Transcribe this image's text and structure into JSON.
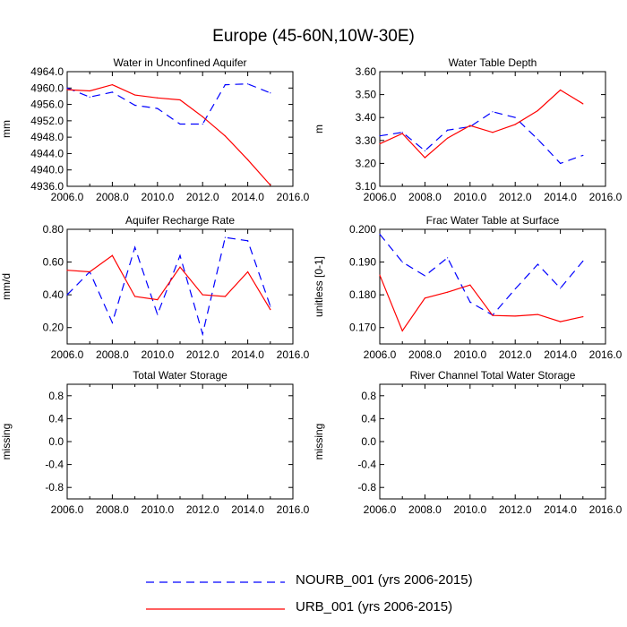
{
  "title": "Europe (45-60N,10W-30E)",
  "colors": {
    "nourb": "#0000ff",
    "urb": "#ff0000",
    "axis": "#000000"
  },
  "legend": [
    {
      "label": "NOURB_001 (yrs 2006-2015)",
      "style": "dashed",
      "color": "#0000ff"
    },
    {
      "label": "URB_001 (yrs 2006-2015)",
      "style": "solid",
      "color": "#ff0000"
    }
  ],
  "chart_data": [
    {
      "type": "line",
      "title": "Water in Unconfined Aquifer",
      "ylabel": "mm",
      "xlim": [
        2006,
        2016
      ],
      "ylim": [
        4936,
        4964
      ],
      "xticks": [
        "2006.0",
        "2008.0",
        "2010.0",
        "2012.0",
        "2014.0",
        "2016.0"
      ],
      "yticks": [
        "4936.0",
        "4940.0",
        "4944.0",
        "4948.0",
        "4952.0",
        "4956.0",
        "4960.0",
        "4964.0"
      ],
      "x": [
        2006,
        2007,
        2008,
        2009,
        2010,
        2011,
        2012,
        2013,
        2014,
        2015
      ],
      "series": [
        {
          "name": "NOURB_001 (yrs 2006-2015)",
          "values": [
            4960.0,
            4957.8,
            4959.0,
            4955.8,
            4955.0,
            4951.2,
            4951.2,
            4960.8,
            4961.0,
            4958.8
          ]
        },
        {
          "name": "URB_001 (yrs 2006-2015)",
          "values": [
            4959.6,
            4959.3,
            4960.8,
            4958.3,
            4957.6,
            4957.1,
            4953.0,
            4948.3,
            4942.5,
            4936.3
          ]
        }
      ]
    },
    {
      "type": "line",
      "title": "Water Table Depth",
      "ylabel": "m",
      "xlim": [
        2006,
        2016
      ],
      "ylim": [
        3.1,
        3.6
      ],
      "xticks": [
        "2006.0",
        "2008.0",
        "2010.0",
        "2012.0",
        "2014.0",
        "2016.0"
      ],
      "yticks": [
        "3.10",
        "3.20",
        "3.30",
        "3.40",
        "3.50",
        "3.60"
      ],
      "x": [
        2006,
        2007,
        2008,
        2009,
        2010,
        2011,
        2012,
        2013,
        2014,
        2015
      ],
      "series": [
        {
          "name": "NOURB_001 (yrs 2006-2015)",
          "values": [
            3.32,
            3.335,
            3.255,
            3.345,
            3.36,
            3.425,
            3.4,
            3.305,
            3.2,
            3.235
          ]
        },
        {
          "name": "URB_001 (yrs 2006-2015)",
          "values": [
            3.285,
            3.33,
            3.225,
            3.31,
            3.365,
            3.335,
            3.37,
            3.43,
            3.52,
            3.46
          ]
        }
      ]
    },
    {
      "type": "line",
      "title": "Aquifer Recharge Rate",
      "ylabel": "mm/d",
      "xlim": [
        2006,
        2016
      ],
      "ylim": [
        0.1,
        0.8
      ],
      "xticks": [
        "2006.0",
        "2008.0",
        "2010.0",
        "2012.0",
        "2014.0",
        "2016.0"
      ],
      "yticks": [
        "0.20",
        "0.40",
        "0.60",
        "0.80"
      ],
      "x": [
        2006,
        2007,
        2008,
        2009,
        2010,
        2011,
        2012,
        2013,
        2014,
        2015
      ],
      "series": [
        {
          "name": "NOURB_001 (yrs 2006-2015)",
          "values": [
            0.4,
            0.54,
            0.23,
            0.69,
            0.28,
            0.64,
            0.16,
            0.75,
            0.73,
            0.33
          ]
        },
        {
          "name": "URB_001 (yrs 2006-2015)",
          "values": [
            0.55,
            0.54,
            0.64,
            0.39,
            0.37,
            0.57,
            0.4,
            0.39,
            0.54,
            0.31
          ]
        }
      ]
    },
    {
      "type": "line",
      "title": "Frac Water Table at Surface",
      "ylabel": "unitless [0-1]",
      "xlim": [
        2006,
        2016
      ],
      "ylim": [
        0.165,
        0.2
      ],
      "xticks": [
        "2006.0",
        "2008.0",
        "2010.0",
        "2012.0",
        "2014.0",
        "2016.0"
      ],
      "yticks": [
        "0.170",
        "0.180",
        "0.190",
        "0.200"
      ],
      "x": [
        2006,
        2007,
        2008,
        2009,
        2010,
        2011,
        2012,
        2013,
        2014,
        2015
      ],
      "series": [
        {
          "name": "NOURB_001 (yrs 2006-2015)",
          "values": [
            0.1985,
            0.19,
            0.1858,
            0.1913,
            0.1778,
            0.1738,
            0.1818,
            0.1893,
            0.182,
            0.1903
          ]
        },
        {
          "name": "URB_001 (yrs 2006-2015)",
          "values": [
            0.186,
            0.169,
            0.179,
            0.1808,
            0.183,
            0.1737,
            0.1735,
            0.174,
            0.1718,
            0.1733
          ]
        }
      ]
    },
    {
      "type": "line",
      "title": "Total Water Storage",
      "ylabel": "missing",
      "xlim": [
        2006,
        2016
      ],
      "ylim": [
        -1,
        1
      ],
      "xticks": [
        "2006.0",
        "2008.0",
        "2010.0",
        "2012.0",
        "2014.0",
        "2016.0"
      ],
      "yticks": [
        "-0.8",
        "-0.4",
        "0.0",
        "0.4",
        "0.8"
      ],
      "x": [],
      "series": []
    },
    {
      "type": "line",
      "title": "River Channel Total Water Storage",
      "ylabel": "missing",
      "xlim": [
        2006,
        2016
      ],
      "ylim": [
        -1,
        1
      ],
      "xticks": [
        "2006.0",
        "2008.0",
        "2010.0",
        "2012.0",
        "2014.0",
        "2016.0"
      ],
      "yticks": [
        "-0.8",
        "-0.4",
        "0.0",
        "0.4",
        "0.8"
      ],
      "x": [],
      "series": []
    }
  ]
}
